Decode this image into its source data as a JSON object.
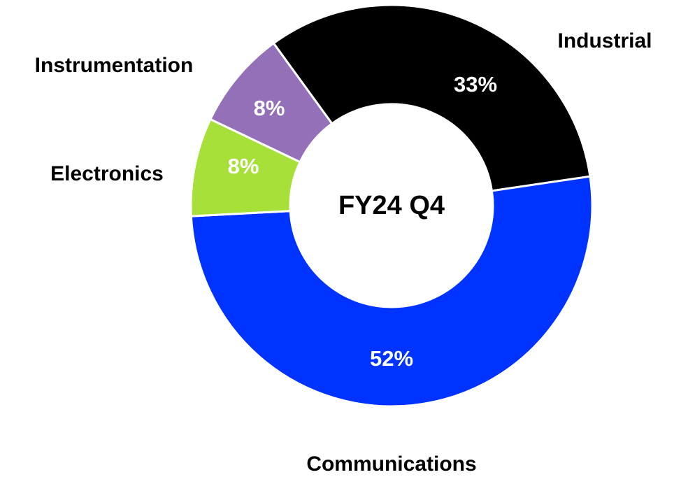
{
  "chart_data": {
    "type": "pie",
    "center_label": "FY24 Q4",
    "categories": [
      "Industrial",
      "Communications",
      "Electronics",
      "Instrumentation"
    ],
    "values": [
      33,
      52,
      8,
      8
    ],
    "value_labels": [
      "33%",
      "52%",
      "8%",
      "8%"
    ],
    "colors": [
      "#000000",
      "#0033ff",
      "#a8e03a",
      "#9370b8"
    ]
  }
}
